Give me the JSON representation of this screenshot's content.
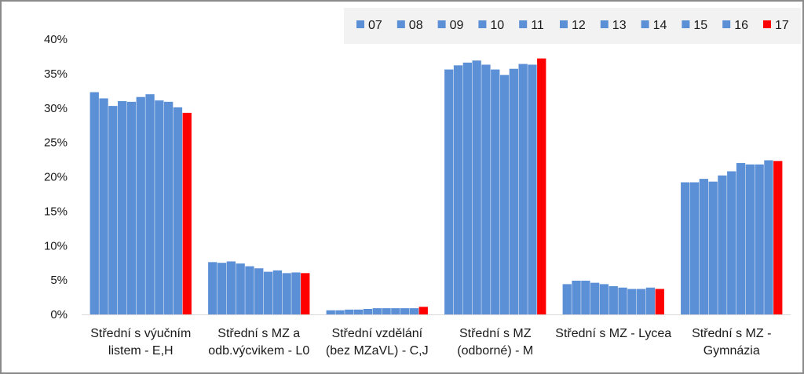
{
  "chart_data": {
    "type": "bar",
    "title": "",
    "xlabel": "",
    "ylabel": "",
    "ylim": [
      0,
      40
    ],
    "y_ticks": [
      "0%",
      "5%",
      "10%",
      "15%",
      "20%",
      "25%",
      "30%",
      "35%",
      "40%"
    ],
    "grid": false,
    "legend_position": "top-right",
    "categories": [
      [
        "Střední s výučním",
        "listem - E,H"
      ],
      [
        "Střední s MZ a",
        "odb.výcvikem - L0"
      ],
      [
        "Střední vzdělání",
        "(bez MZaVL) - C,J"
      ],
      [
        "Střední s MZ",
        "(odborné) - M"
      ],
      [
        "Střední s MZ - Lycea"
      ],
      [
        "Střední s MZ -",
        "Gymnázia"
      ]
    ],
    "series": [
      {
        "name": "07",
        "color": "#5b8fd6",
        "values": [
          32.3,
          7.6,
          0.6,
          35.6,
          4.4,
          19.2
        ]
      },
      {
        "name": "08",
        "color": "#5b8fd6",
        "values": [
          31.4,
          7.5,
          0.6,
          36.2,
          4.9,
          19.2
        ]
      },
      {
        "name": "09",
        "color": "#5b8fd6",
        "values": [
          30.3,
          7.7,
          0.7,
          36.6,
          4.9,
          19.7
        ]
      },
      {
        "name": "10",
        "color": "#5b8fd6",
        "values": [
          31.0,
          7.4,
          0.7,
          36.9,
          4.6,
          19.3
        ]
      },
      {
        "name": "11",
        "color": "#5b8fd6",
        "values": [
          30.9,
          7.0,
          0.8,
          36.3,
          4.4,
          20.2
        ]
      },
      {
        "name": "12",
        "color": "#5b8fd6",
        "values": [
          31.6,
          6.7,
          0.9,
          35.6,
          4.1,
          20.8
        ]
      },
      {
        "name": "13",
        "color": "#5b8fd6",
        "values": [
          32.0,
          6.2,
          0.9,
          34.8,
          3.9,
          22.0
        ]
      },
      {
        "name": "14",
        "color": "#5b8fd6",
        "values": [
          31.1,
          6.4,
          0.9,
          35.7,
          3.7,
          21.8
        ]
      },
      {
        "name": "15",
        "color": "#5b8fd6",
        "values": [
          30.9,
          6.0,
          0.9,
          36.4,
          3.7,
          21.8
        ]
      },
      {
        "name": "16",
        "color": "#5b8fd6",
        "values": [
          30.1,
          6.1,
          0.9,
          36.3,
          3.9,
          22.4
        ]
      },
      {
        "name": "17",
        "color": "#ff0000",
        "values": [
          29.3,
          6.0,
          1.1,
          37.2,
          3.7,
          22.3
        ]
      }
    ]
  }
}
